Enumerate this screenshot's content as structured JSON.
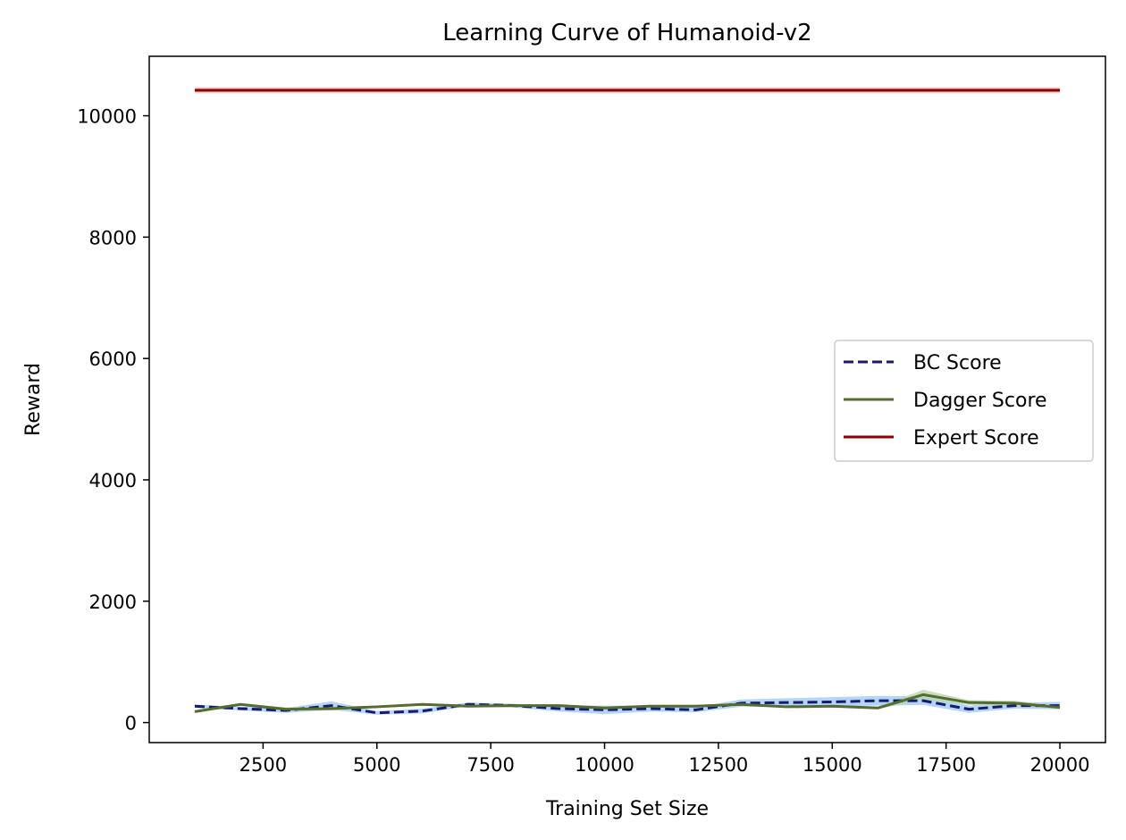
{
  "chart_data": {
    "type": "line",
    "title": "Learning Curve of Humanoid-v2",
    "xlabel": "Training Set Size",
    "ylabel": "Reward",
    "xlim": [
      0,
      21000
    ],
    "ylim": [
      -330,
      10980
    ],
    "xticks": [
      2500,
      5000,
      7500,
      10000,
      12500,
      15000,
      17500,
      20000
    ],
    "yticks": [
      0,
      2000,
      4000,
      6000,
      8000,
      10000
    ],
    "grid": false,
    "legend_position": "center-right",
    "x": [
      1000,
      2000,
      3000,
      4000,
      5000,
      6000,
      7000,
      8000,
      9000,
      10000,
      11000,
      12000,
      13000,
      14000,
      15000,
      16000,
      17000,
      18000,
      19000,
      20000
    ],
    "series": [
      {
        "name": "BC Score",
        "style": "dashed",
        "color": "#191970",
        "band_color": "#99c8f5",
        "values": [
          270,
          230,
          200,
          280,
          160,
          190,
          300,
          280,
          230,
          210,
          230,
          210,
          320,
          330,
          340,
          360,
          360,
          220,
          280,
          280
        ],
        "spread": [
          30,
          30,
          40,
          70,
          30,
          40,
          30,
          30,
          50,
          70,
          50,
          40,
          60,
          70,
          80,
          80,
          70,
          60,
          50,
          60
        ]
      },
      {
        "name": "Dagger Score",
        "style": "solid",
        "color": "#556b2f",
        "band_color": "#b6d4a8",
        "values": [
          180,
          300,
          220,
          230,
          260,
          300,
          270,
          280,
          280,
          240,
          270,
          270,
          300,
          260,
          270,
          240,
          460,
          330,
          320,
          250
        ],
        "spread": [
          20,
          20,
          30,
          30,
          20,
          20,
          20,
          20,
          20,
          20,
          20,
          20,
          20,
          20,
          20,
          20,
          80,
          40,
          40,
          30
        ]
      },
      {
        "name": "Expert Score",
        "style": "solid",
        "color": "#8b0000",
        "band_color": "#f4b6b6",
        "values": [
          10420,
          10420,
          10420,
          10420,
          10420,
          10420,
          10420,
          10420,
          10420,
          10420,
          10420,
          10420,
          10420,
          10420,
          10420,
          10420,
          10420,
          10420,
          10420,
          10420
        ],
        "spread": [
          50,
          50,
          50,
          50,
          50,
          50,
          50,
          50,
          50,
          50,
          50,
          50,
          50,
          50,
          50,
          50,
          50,
          50,
          50,
          50
        ]
      }
    ]
  }
}
